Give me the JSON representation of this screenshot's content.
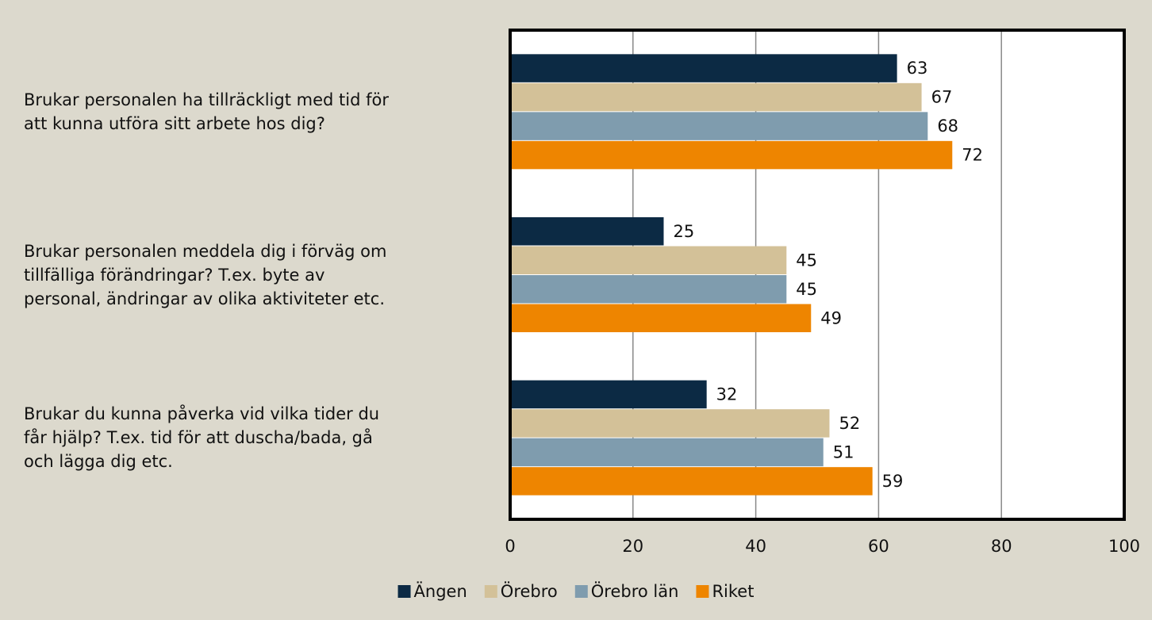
{
  "chart_data": {
    "type": "bar",
    "orientation": "horizontal",
    "categories": [
      "Brukar personalen ha tillräckligt med tid för\natt kunna utföra sitt arbete hos dig?",
      "Brukar personalen meddela dig i förväg om\ntillfälliga förändringar? T.ex. byte av\npersonal, ändringar av olika aktiviteter etc.",
      "Brukar du kunna påverka vid vilka tider du\nfår hjälp? T.ex. tid för att duscha/bada, gå\noch lägga dig etc."
    ],
    "series": [
      {
        "name": "Ängen",
        "color": "#0c2a44",
        "values": [
          63,
          25,
          32
        ]
      },
      {
        "name": "Örebro",
        "color": "#d3c198",
        "values": [
          67,
          45,
          52
        ]
      },
      {
        "name": "Örebro län",
        "color": "#7f9cae",
        "values": [
          68,
          45,
          51
        ]
      },
      {
        "name": "Riket",
        "color": "#ee8500",
        "values": [
          72,
          49,
          59
        ]
      }
    ],
    "xlim": [
      0,
      100
    ],
    "xticks": [
      0,
      20,
      40,
      60,
      80,
      100
    ],
    "grid": true,
    "legend": "bottom"
  }
}
